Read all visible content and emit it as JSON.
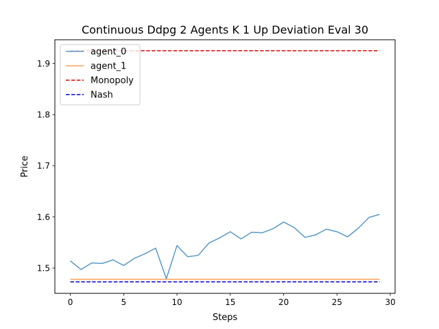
{
  "chart_data": {
    "type": "line",
    "title": "Continuous Ddpg 2 Agents K 1 Up Deviation Eval 30",
    "xlabel": "Steps",
    "ylabel": "Price",
    "xlim": [
      -1.45,
      30.45
    ],
    "ylim": [
      1.4505,
      1.9465
    ],
    "x_ticks": [
      0,
      5,
      10,
      15,
      20,
      25,
      30
    ],
    "y_ticks": [
      1.5,
      1.6,
      1.7,
      1.8,
      1.9
    ],
    "x_tick_labels": [
      "0",
      "5",
      "10",
      "15",
      "20",
      "25",
      "30"
    ],
    "y_tick_labels": [
      "1.5",
      "1.6",
      "1.7",
      "1.8",
      "1.9"
    ],
    "grid": false,
    "legend_position": "top-left",
    "x": [
      0,
      1,
      2,
      3,
      4,
      5,
      6,
      7,
      8,
      9,
      10,
      11,
      12,
      13,
      14,
      15,
      16,
      17,
      18,
      19,
      20,
      21,
      22,
      23,
      24,
      25,
      26,
      27,
      28,
      29
    ],
    "series": [
      {
        "name": "agent_0",
        "color": "#5799c7",
        "style": "solid",
        "values": [
          1.514,
          1.497,
          1.51,
          1.509,
          1.516,
          1.505,
          1.519,
          1.528,
          1.539,
          1.479,
          1.544,
          1.522,
          1.525,
          1.549,
          1.559,
          1.571,
          1.557,
          1.57,
          1.569,
          1.577,
          1.59,
          1.579,
          1.56,
          1.565,
          1.576,
          1.571,
          1.561,
          1.578,
          1.599,
          1.605
        ]
      },
      {
        "name": "agent_1",
        "color": "#ff9f55",
        "style": "solid",
        "values": [
          1.478,
          1.478,
          1.478,
          1.478,
          1.478,
          1.478,
          1.478,
          1.478,
          1.478,
          1.478,
          1.478,
          1.478,
          1.478,
          1.478,
          1.478,
          1.478,
          1.478,
          1.478,
          1.478,
          1.478,
          1.478,
          1.478,
          1.478,
          1.478,
          1.478,
          1.478,
          1.478,
          1.478,
          1.478,
          1.478
        ]
      },
      {
        "name": "Monopoly",
        "color": "#dd0000",
        "style": "dashed",
        "values": [
          1.925,
          1.925,
          1.925,
          1.925,
          1.925,
          1.925,
          1.925,
          1.925,
          1.925,
          1.925,
          1.925,
          1.925,
          1.925,
          1.925,
          1.925,
          1.925,
          1.925,
          1.925,
          1.925,
          1.925,
          1.925,
          1.925,
          1.925,
          1.925,
          1.925,
          1.925,
          1.925,
          1.925,
          1.925,
          1.925
        ]
      },
      {
        "name": "Nash",
        "color": "#0000cc",
        "style": "dashed",
        "values": [
          1.473,
          1.473,
          1.473,
          1.473,
          1.473,
          1.473,
          1.473,
          1.473,
          1.473,
          1.473,
          1.473,
          1.473,
          1.473,
          1.473,
          1.473,
          1.473,
          1.473,
          1.473,
          1.473,
          1.473,
          1.473,
          1.473,
          1.473,
          1.473,
          1.473,
          1.473,
          1.473,
          1.473,
          1.473,
          1.473
        ]
      }
    ]
  }
}
